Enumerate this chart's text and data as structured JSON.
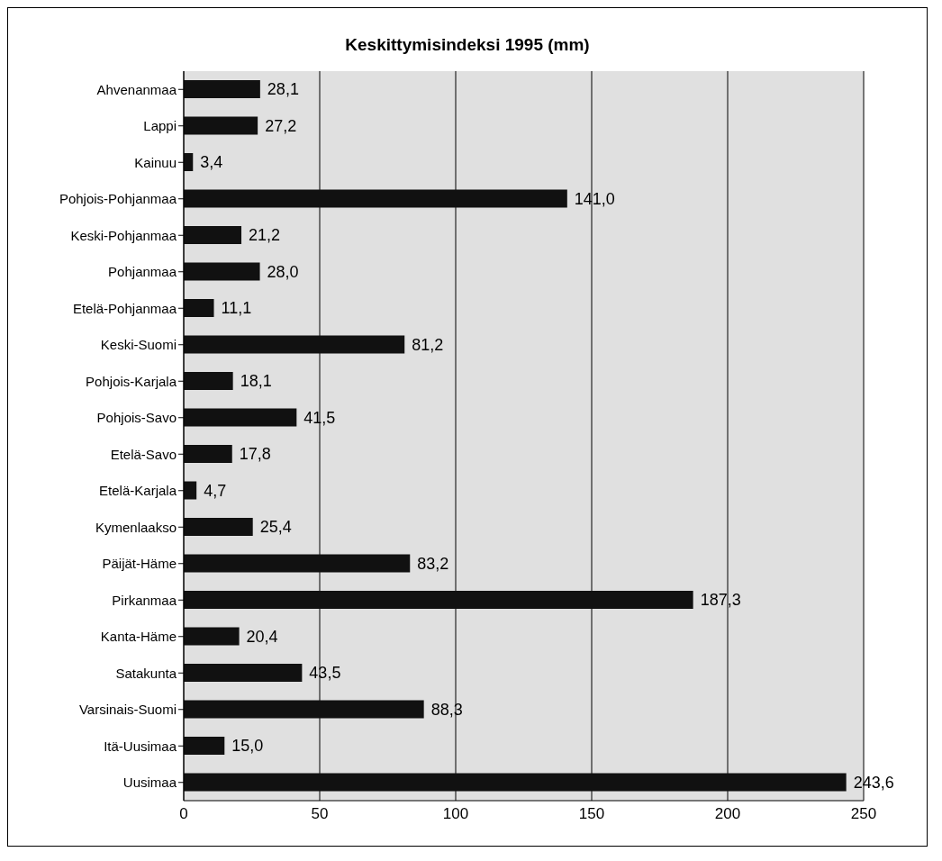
{
  "chart_data": {
    "type": "bar",
    "orientation": "horizontal",
    "title": "Keskittymisindeksi 1995 (mm)",
    "categories": [
      "Ahvenanmaa",
      "Lappi",
      "Kainuu",
      "Pohjois-Pohjanmaa",
      "Keski-Pohjanmaa",
      "Pohjanmaa",
      "Etelä-Pohjanmaa",
      "Keski-Suomi",
      "Pohjois-Karjala",
      "Pohjois-Savo",
      "Etelä-Savo",
      "Etelä-Karjala",
      "Kymenlaakso",
      "Päijät-Häme",
      "Pirkanmaa",
      "Kanta-Häme",
      "Satakunta",
      "Varsinais-Suomi",
      "Itä-Uusimaa",
      "Uusimaa"
    ],
    "values": [
      28.1,
      27.2,
      3.4,
      141.0,
      21.2,
      28.0,
      11.1,
      81.2,
      18.1,
      41.5,
      17.8,
      4.7,
      25.4,
      83.2,
      187.3,
      20.4,
      43.5,
      88.3,
      15.0,
      243.6
    ],
    "value_labels": [
      "28,1",
      "27,2",
      "3,4",
      "141,0",
      "21,2",
      "28,0",
      "11,1",
      "81,2",
      "18,1",
      "41,5",
      "17,8",
      "4,7",
      "25,4",
      "83,2",
      "187,3",
      "20,4",
      "43,5",
      "88,3",
      "15,0",
      "243,6"
    ],
    "color": "#111111",
    "xlim": [
      0,
      250
    ],
    "xticks": [
      0,
      50,
      100,
      150,
      200,
      250
    ],
    "grid": "x",
    "legend": false
  }
}
